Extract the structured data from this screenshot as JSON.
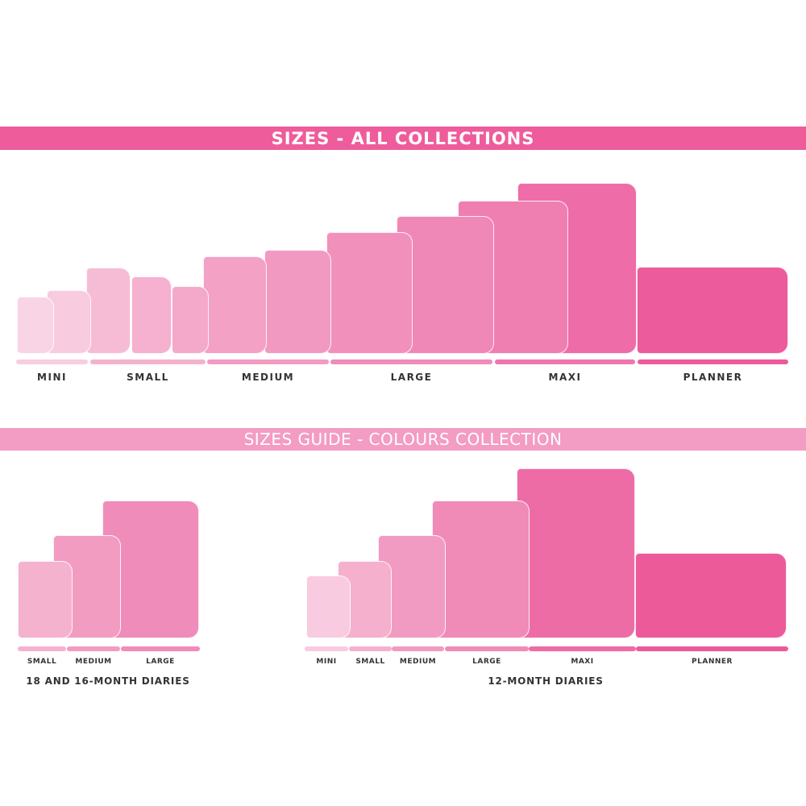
{
  "banner_top": {
    "title": "SIZES - ALL COLLECTIONS",
    "color": "#ee5c9b"
  },
  "banner_bottom": {
    "title": "SIZES GUIDE - COLOURS COLLECTION",
    "color": "#f39cc4"
  },
  "all_collections": {
    "groups": [
      {
        "label": "MINI",
        "color": "#f8cde0"
      },
      {
        "label": "SMALL",
        "color": "#f5b2cf"
      },
      {
        "label": "MEDIUM",
        "color": "#f29cc2"
      },
      {
        "label": "LARGE",
        "color": "#f08cb9"
      },
      {
        "label": "MAXI",
        "color": "#ee77ad"
      },
      {
        "label": "PLANNER",
        "color": "#ec5b9b"
      }
    ],
    "shape_colors": [
      "#f9d4e5",
      "#f8cbdf",
      "#f6bcd6",
      "#f5b1cf",
      "#f4a9ca",
      "#f3a1c5",
      "#f299c1",
      "#f190bb",
      "#f088b7",
      "#ef7eb1",
      "#ee6ca7",
      "#ec5b9b"
    ]
  },
  "colours_collection": {
    "diaries_18_16": {
      "caption": "18 AND 16-MONTH DIARIES",
      "sizes": [
        {
          "label": "SMALL",
          "color": "#f5b2cf"
        },
        {
          "label": "MEDIUM",
          "color": "#f29cc2"
        },
        {
          "label": "LARGE",
          "color": "#f08cb9"
        }
      ]
    },
    "diaries_12": {
      "caption": "12-MONTH DIARIES",
      "sizes": [
        {
          "label": "MINI",
          "color": "#f9cbe0"
        },
        {
          "label": "SMALL",
          "color": "#f5b0cd"
        },
        {
          "label": "MEDIUM",
          "color": "#f29bc2"
        },
        {
          "label": "LARGE",
          "color": "#f08bb7"
        },
        {
          "label": "MAXI",
          "color": "#ee6ca6"
        },
        {
          "label": "PLANNER",
          "color": "#ec5a9a"
        }
      ]
    }
  }
}
